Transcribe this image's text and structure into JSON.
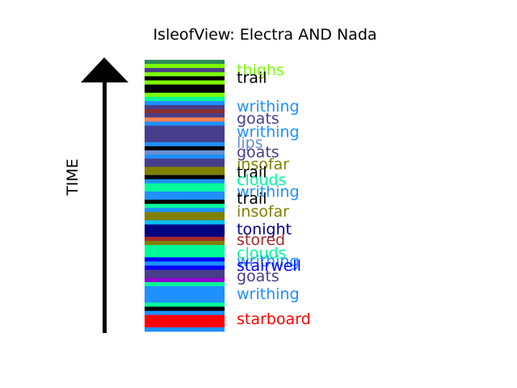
{
  "chart_data": {
    "type": "bar",
    "title": "IsleofView: Electra AND Nada",
    "ylabel": "TIME",
    "orientation": "vertical-strip",
    "stripes": [
      "#2e8b57",
      "#7cfc00",
      "#483d8b",
      "#7cfc00",
      "#000000",
      "#7cfc00",
      "#000000",
      "#000000",
      "#7cfc00",
      "#00fa9a",
      "#1e90ff",
      "#483d8b",
      "#8b2f2f",
      "#483d8b",
      "#ff7f50",
      "#1e90ff",
      "#483d8b",
      "#483d8b",
      "#483d8b",
      "#483d8b",
      "#1e90ff",
      "#000000",
      "#6a8fd0",
      "#1e90ff",
      "#483d8b",
      "#483d8b",
      "#808000",
      "#808000",
      "#000000",
      "#1e90ff",
      "#00fa9a",
      "#00fa9a",
      "#1e90ff",
      "#1e90ff",
      "#000000",
      "#00fa9a",
      "#1e90ff",
      "#808000",
      "#808000",
      "#00bfff",
      "#000080",
      "#000080",
      "#000080",
      "#a52a2a",
      "#808000",
      "#00fa9a",
      "#00fa9a",
      "#00fa9a",
      "#0000ff",
      "#1e90ff",
      "#0000ff",
      "#483d8b",
      "#483d8b",
      "#9400d3",
      "#00fa9a",
      "#1e90ff",
      "#1e90ff",
      "#1e90ff",
      "#1e90ff",
      "#00fa9a",
      "#000000",
      "#1e90ff",
      "#ff0000",
      "#ff0000",
      "#ff0000",
      "#1e90ff"
    ],
    "words": [
      {
        "text": "thighs",
        "color": "#7cfc00",
        "t": 0.965
      },
      {
        "text": "trail",
        "color": "#000000",
        "t": 0.936
      },
      {
        "text": "writhing",
        "color": "#1e90ff",
        "t": 0.831
      },
      {
        "text": "goats",
        "color": "#483d8b",
        "t": 0.785
      },
      {
        "text": "writhing",
        "color": "#1e90ff",
        "t": 0.736
      },
      {
        "text": "lips",
        "color": "#6a8fd0",
        "t": 0.697
      },
      {
        "text": "goats",
        "color": "#483d8b",
        "t": 0.662
      },
      {
        "text": "insofar",
        "color": "#808000",
        "t": 0.617
      },
      {
        "text": "trail",
        "color": "#000000",
        "t": 0.588
      },
      {
        "text": "clouds",
        "color": "#00fa9a",
        "t": 0.56
      },
      {
        "text": "writhing",
        "color": "#1e90ff",
        "t": 0.516
      },
      {
        "text": "trail",
        "color": "#000000",
        "t": 0.491
      },
      {
        "text": "insofar",
        "color": "#808000",
        "t": 0.443
      },
      {
        "text": "tonight",
        "color": "#000080",
        "t": 0.378
      },
      {
        "text": "stored",
        "color": "#a52a2a",
        "t": 0.34
      },
      {
        "text": "clouds",
        "color": "#00fa9a",
        "t": 0.29
      },
      {
        "text": "writhing",
        "color": "#1e90ff",
        "t": 0.26
      },
      {
        "text": "stairwell",
        "color": "#0000ff",
        "t": 0.244
      },
      {
        "text": "goats",
        "color": "#483d8b",
        "t": 0.205
      },
      {
        "text": "writhing",
        "color": "#1e90ff",
        "t": 0.14
      },
      {
        "text": "starboard",
        "color": "#ff0000",
        "t": 0.048
      }
    ]
  }
}
